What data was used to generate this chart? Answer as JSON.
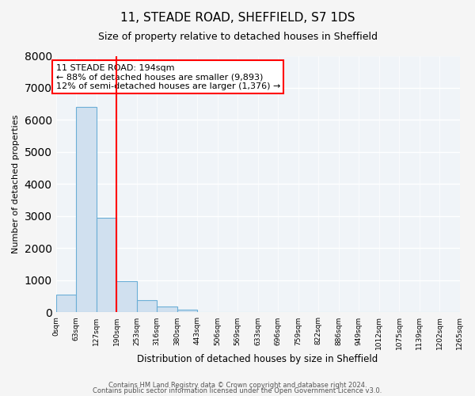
{
  "title": "11, STEADE ROAD, SHEFFIELD, S7 1DS",
  "subtitle": "Size of property relative to detached houses in Sheffield",
  "xlabel": "Distribution of detached houses by size in Sheffield",
  "ylabel": "Number of detached properties",
  "bin_labels": [
    "0sqm",
    "63sqm",
    "127sqm",
    "190sqm",
    "253sqm",
    "316sqm",
    "380sqm",
    "443sqm",
    "506sqm",
    "569sqm",
    "633sqm",
    "696sqm",
    "759sqm",
    "822sqm",
    "886sqm",
    "949sqm",
    "1012sqm",
    "1075sqm",
    "1139sqm",
    "1202sqm",
    "1265sqm"
  ],
  "bar_values": [
    550,
    6400,
    2950,
    980,
    390,
    175,
    90,
    0,
    0,
    0,
    0,
    0,
    0,
    0,
    0,
    0,
    0,
    0,
    0,
    0
  ],
  "bar_color": "#d0e0ef",
  "bar_edge_color": "#6baed6",
  "vline_x": 3,
  "vline_color": "red",
  "ylim": [
    0,
    8000
  ],
  "annotation_text": "11 STEADE ROAD: 194sqm\n← 88% of detached houses are smaller (9,893)\n12% of semi-detached houses are larger (1,376) →",
  "annotation_box_color": "white",
  "annotation_box_edge_color": "red",
  "footer1": "Contains HM Land Registry data © Crown copyright and database right 2024.",
  "footer2": "Contains public sector information licensed under the Open Government Licence v3.0.",
  "bg_color": "#f5f5f5",
  "plot_bg_color": "#f0f4f8",
  "grid_color": "white"
}
